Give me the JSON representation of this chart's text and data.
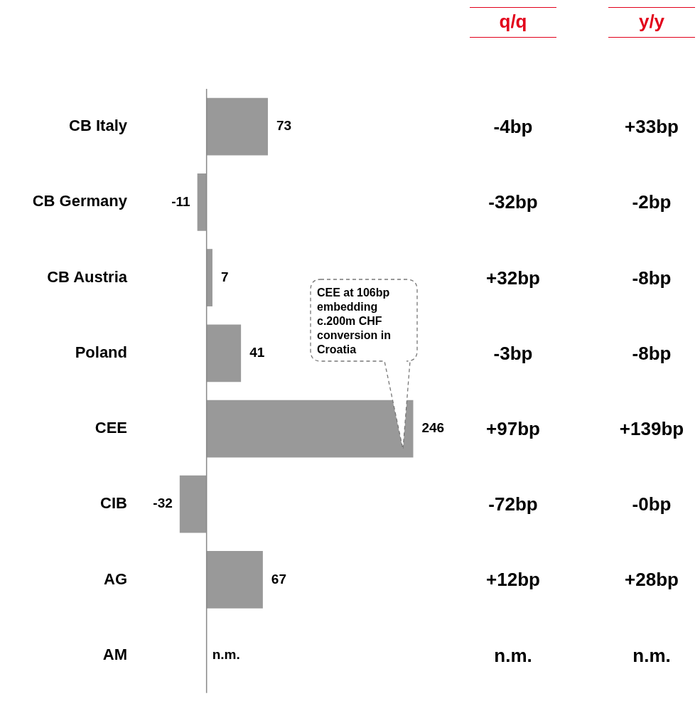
{
  "chart_data": {
    "type": "bar",
    "orientation": "horizontal",
    "categories": [
      "CB Italy",
      "CB Germany",
      "CB Austria",
      "Poland",
      "CEE",
      "CIB",
      "AG",
      "AM"
    ],
    "values": [
      73,
      -11,
      7,
      41,
      246,
      -32,
      67,
      null
    ],
    "color": "#999999",
    "value_labels": [
      "73",
      "-11",
      "7",
      "41",
      "246",
      "-32",
      "67",
      "n.m."
    ],
    "grid": false,
    "legend": false,
    "tick_labels": "y",
    "annotations": [
      "q/q",
      "y/y",
      "-4bp",
      "+33bp",
      "-32bp",
      "-2bp",
      "+32bp",
      "-8bp",
      "-3bp",
      "-8bp",
      "+97bp",
      "+139bp",
      "-72bp",
      "-0bp",
      "+12bp",
      "+28bp",
      "n.m.",
      "n.m.",
      "CEE at 106bp embedding c.200m CHF conversion in Croatia"
    ]
  }
}
